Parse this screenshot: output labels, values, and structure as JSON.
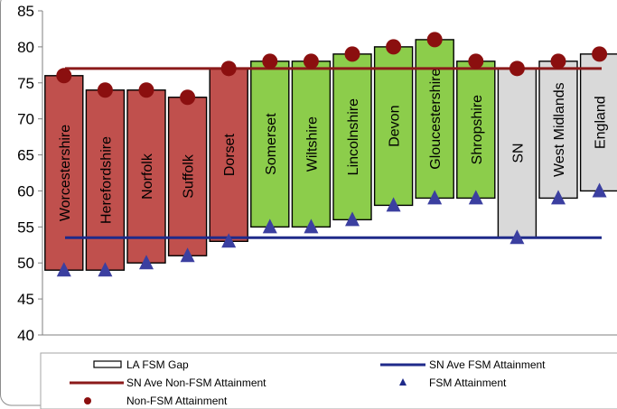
{
  "chart_data": {
    "type": "bar",
    "title": "",
    "xlabel": "",
    "ylabel": "",
    "ylim": [
      40,
      85
    ],
    "yticks": [
      40,
      45,
      50,
      55,
      60,
      65,
      70,
      75,
      80,
      85
    ],
    "categories": [
      "Worcestershire",
      "Herefordshire",
      "Norfolk",
      "Suffolk",
      "Dorset",
      "Somerset",
      "Wiltshire",
      "Lincolnshire",
      "Devon",
      "Gloucestershire",
      "Shropshire",
      "SN",
      "West Midlands",
      "England"
    ],
    "series": [
      {
        "name": "Non-FSM Attainment",
        "values": [
          76,
          74,
          74,
          73,
          77,
          78,
          78,
          79,
          80,
          81,
          78,
          77,
          78,
          79
        ]
      },
      {
        "name": "FSM Attainment",
        "values": [
          49,
          49,
          50,
          51,
          53,
          55,
          55,
          56,
          58,
          59,
          59,
          53.5,
          59,
          60
        ]
      }
    ],
    "gap_group": [
      "red",
      "red",
      "red",
      "red",
      "red",
      "green",
      "green",
      "green",
      "green",
      "green",
      "green",
      "grey",
      "grey",
      "grey"
    ],
    "reference_lines": [
      {
        "name": "SN Ave Non-FSM Attainment",
        "value": 77,
        "color": "#8b1a1a"
      },
      {
        "name": "SN Ave FSM Attainment",
        "value": 53.5,
        "color": "#1f2a8a"
      }
    ],
    "grid": false,
    "legend_position": "bottom"
  },
  "legend": {
    "gap_label": "LA FSM Gap",
    "sn_fsm_label": "SN Ave FSM Attainment",
    "sn_nonfsm_label": "SN Ave Non-FSM Attainment",
    "fsm_label": "FSM Attainment",
    "nonfsm_label": "Non-FSM Attainment"
  },
  "colors": {
    "red": "#c0504d",
    "green": "#8ccd4b",
    "grey": "#d9d9d9",
    "non_fsm_marker": "#8b0f0f",
    "fsm_marker": "#3b3fa0",
    "sn_nonfsm_line": "#8b1a1a",
    "sn_fsm_line": "#1f2a8a"
  }
}
